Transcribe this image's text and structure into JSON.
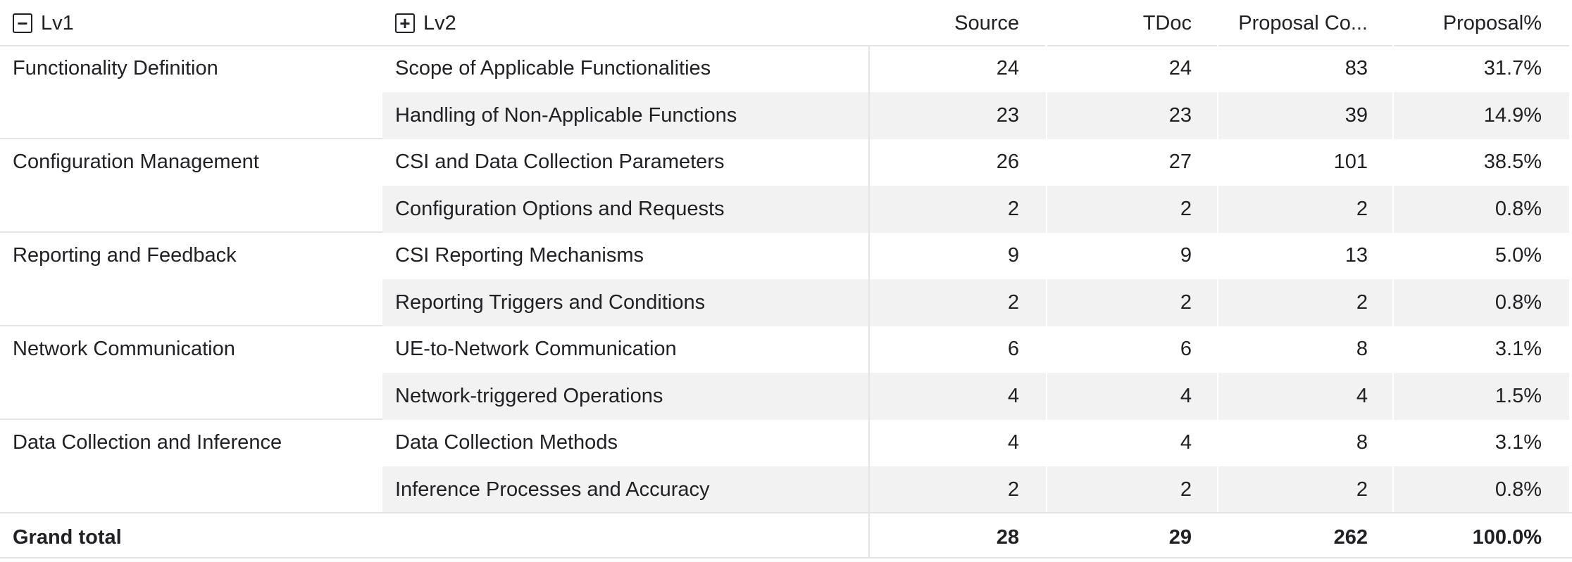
{
  "header": {
    "lv1_toggle": "−",
    "lv1": "Lv1",
    "lv2_toggle": "+",
    "lv2": "Lv2",
    "source": "Source",
    "tdoc": "TDoc",
    "proposal_count": "Proposal Co...",
    "proposal_pct": "Proposal%"
  },
  "groups": [
    {
      "lv1": "Functionality Definition",
      "rows": [
        {
          "lv2": "Scope of Applicable Functionalities",
          "source": "24",
          "tdoc": "24",
          "proposal_count": "83",
          "proposal_pct": "31.7%"
        },
        {
          "lv2": "Handling of Non-Applicable Functions",
          "source": "23",
          "tdoc": "23",
          "proposal_count": "39",
          "proposal_pct": "14.9%"
        }
      ]
    },
    {
      "lv1": "Configuration Management",
      "rows": [
        {
          "lv2": "CSI and Data Collection Parameters",
          "source": "26",
          "tdoc": "27",
          "proposal_count": "101",
          "proposal_pct": "38.5%"
        },
        {
          "lv2": "Configuration Options and Requests",
          "source": "2",
          "tdoc": "2",
          "proposal_count": "2",
          "proposal_pct": "0.8%"
        }
      ]
    },
    {
      "lv1": "Reporting and Feedback",
      "rows": [
        {
          "lv2": "CSI Reporting Mechanisms",
          "source": "9",
          "tdoc": "9",
          "proposal_count": "13",
          "proposal_pct": "5.0%"
        },
        {
          "lv2": "Reporting Triggers and Conditions",
          "source": "2",
          "tdoc": "2",
          "proposal_count": "2",
          "proposal_pct": "0.8%"
        }
      ]
    },
    {
      "lv1": "Network Communication",
      "rows": [
        {
          "lv2": "UE-to-Network Communication",
          "source": "6",
          "tdoc": "6",
          "proposal_count": "8",
          "proposal_pct": "3.1%"
        },
        {
          "lv2": "Network-triggered Operations",
          "source": "4",
          "tdoc": "4",
          "proposal_count": "4",
          "proposal_pct": "1.5%"
        }
      ]
    },
    {
      "lv1": "Data Collection and Inference",
      "rows": [
        {
          "lv2": "Data Collection Methods",
          "source": "4",
          "tdoc": "4",
          "proposal_count": "8",
          "proposal_pct": "3.1%"
        },
        {
          "lv2": "Inference Processes and Accuracy",
          "source": "2",
          "tdoc": "2",
          "proposal_count": "2",
          "proposal_pct": "0.8%"
        }
      ]
    }
  ],
  "total": {
    "label": "Grand total",
    "source": "28",
    "tdoc": "29",
    "proposal_count": "262",
    "proposal_pct": "100.0%"
  }
}
